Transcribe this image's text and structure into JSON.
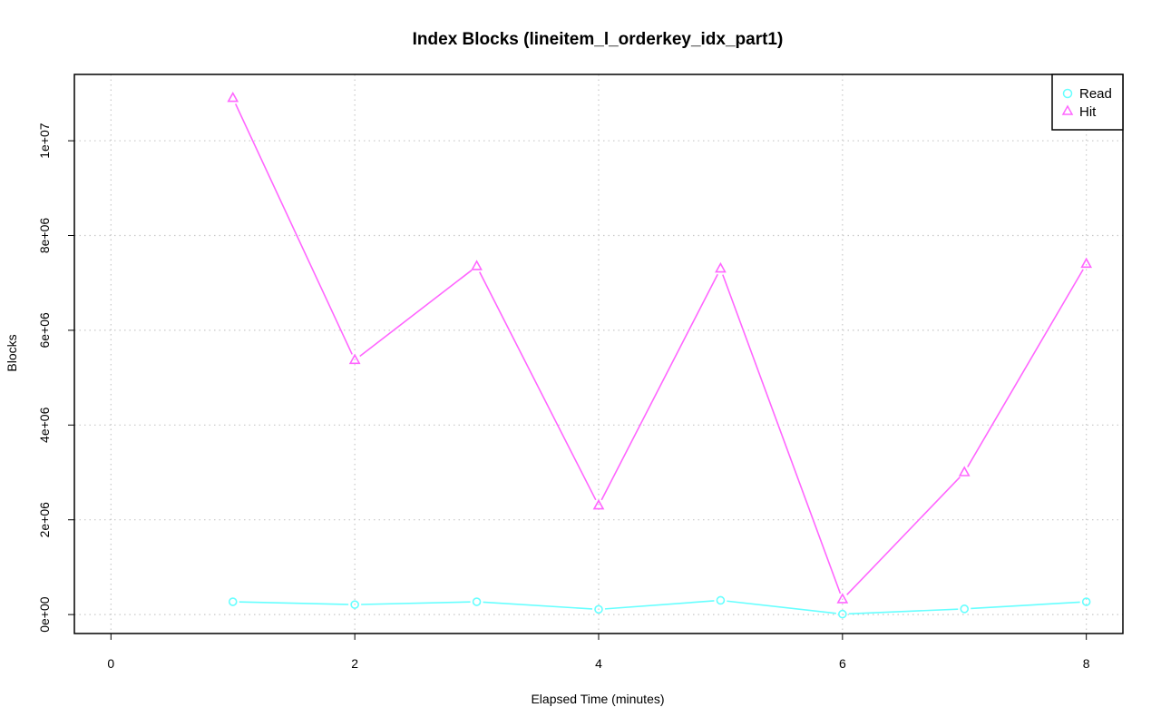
{
  "chart_data": {
    "type": "line",
    "title": "Index Blocks (lineitem_l_orderkey_idx_part1)",
    "xlabel": "Elapsed Time (minutes)",
    "ylabel": "Blocks",
    "xlim": [
      -0.3,
      8.3
    ],
    "ylim": [
      -400000,
      11400000
    ],
    "x_ticks": [
      0,
      2,
      4,
      6,
      8
    ],
    "x_tick_labels": [
      "0",
      "2",
      "4",
      "6",
      "8"
    ],
    "y_ticks": [
      0,
      2000000,
      4000000,
      6000000,
      8000000,
      10000000
    ],
    "y_tick_labels": [
      "0e+00",
      "2e+06",
      "4e+06",
      "6e+06",
      "8e+06",
      "1e+07"
    ],
    "grid": true,
    "legend_position": "top-right",
    "x": [
      1,
      2,
      3,
      4,
      5,
      6,
      7,
      8
    ],
    "series": [
      {
        "name": "Read",
        "color": "#66ffff",
        "marker": "circle",
        "values": [
          270000,
          210000,
          270000,
          110000,
          300000,
          10000,
          120000,
          270000
        ]
      },
      {
        "name": "Hit",
        "color": "#ff66ff",
        "marker": "triangle",
        "values": [
          10900000,
          5370000,
          7350000,
          2300000,
          7300000,
          320000,
          3000000,
          7400000
        ]
      }
    ]
  }
}
